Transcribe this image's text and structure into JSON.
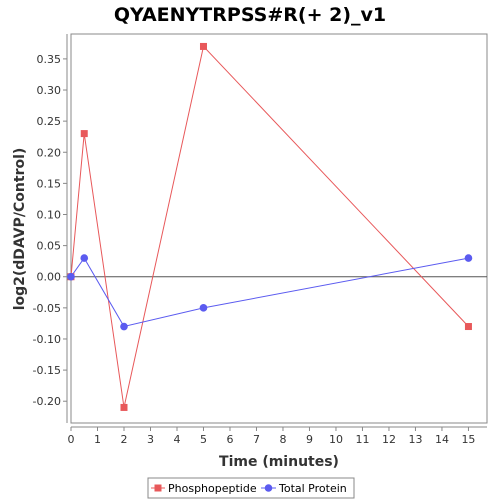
{
  "chart_data": {
    "type": "line",
    "title": "QYAENYTRPSS#R(+ 2)_v1",
    "xlabel": "Time (minutes)",
    "ylabel": "log2(dDAVP/Control)",
    "xlim": [
      0,
      15.7
    ],
    "ylim": [
      -0.235,
      0.39
    ],
    "xticks": [
      0,
      1,
      2,
      3,
      4,
      5,
      6,
      7,
      8,
      9,
      10,
      11,
      12,
      13,
      14,
      15
    ],
    "yticks": [
      -0.2,
      -0.15,
      -0.1,
      -0.05,
      0.0,
      0.05,
      0.1,
      0.15,
      0.2,
      0.25,
      0.3,
      0.35
    ],
    "ytick_labels": [
      "-0.20",
      "-0.15",
      "-0.10",
      "-0.05",
      "0.00",
      "0.05",
      "0.10",
      "0.15",
      "0.20",
      "0.25",
      "0.30",
      "0.35"
    ],
    "zero_line": true,
    "grid": false,
    "legend_position": "bottom",
    "series": [
      {
        "name": "Phosphopeptide",
        "color": "#e8585a",
        "marker": "square",
        "x": [
          0,
          0.5,
          2,
          5,
          15
        ],
        "y": [
          0.0,
          0.23,
          -0.21,
          0.37,
          -0.08
        ]
      },
      {
        "name": "Total Protein",
        "color": "#5b5bf0",
        "marker": "circle",
        "x": [
          0,
          0.5,
          2,
          5,
          15
        ],
        "y": [
          0.0,
          0.03,
          -0.08,
          -0.05,
          0.03
        ]
      }
    ]
  }
}
